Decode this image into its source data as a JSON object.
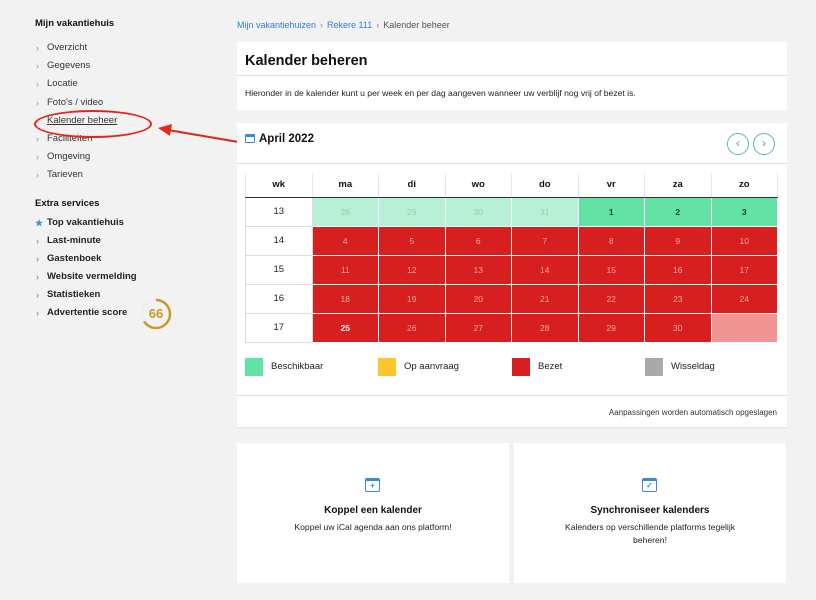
{
  "sidebar": {
    "heading": "Mijn vakantiehuis",
    "items": [
      {
        "label": "Overzicht"
      },
      {
        "label": "Gegevens"
      },
      {
        "label": "Locatie"
      },
      {
        "label": "Foto's / video"
      },
      {
        "label": "Kalender beheer"
      },
      {
        "label": "Faciliteiten"
      },
      {
        "label": "Omgeving"
      },
      {
        "label": "Tarieven"
      }
    ],
    "extra_heading": "Extra services",
    "extra_items": [
      {
        "label": "Top vakantiehuis"
      },
      {
        "label": "Last-minute"
      },
      {
        "label": "Gastenboek"
      },
      {
        "label": "Website vermelding"
      },
      {
        "label": "Statistieken"
      },
      {
        "label": "Advertentie score"
      }
    ],
    "score": "66",
    "score_fraction": 0.66,
    "score_color": "#c89a2a"
  },
  "breadcrumb": {
    "link1": "Mijn vakantiehuizen",
    "link2": "Rekere 111",
    "current": "Kalender beheer",
    "sep": "›"
  },
  "title_panel": {
    "title": "Kalender beheren",
    "description": "Hieronder in de kalender kunt u per week en per dag aangeven wanneer uw verblijf nog vrij of bezet is."
  },
  "calendar": {
    "month_title": "April 2022",
    "prev_icon": "‹",
    "next_icon": "›",
    "headers": [
      "wk",
      "ma",
      "di",
      "wo",
      "do",
      "vr",
      "za",
      "zo"
    ],
    "weeks": [
      {
        "wk": "13",
        "days": [
          {
            "d": "28",
            "s": "past"
          },
          {
            "d": "29",
            "s": "past"
          },
          {
            "d": "30",
            "s": "past"
          },
          {
            "d": "31",
            "s": "past"
          },
          {
            "d": "1",
            "s": "free"
          },
          {
            "d": "2",
            "s": "free"
          },
          {
            "d": "3",
            "s": "free"
          }
        ]
      },
      {
        "wk": "14",
        "days": [
          {
            "d": "4",
            "s": "booked"
          },
          {
            "d": "5",
            "s": "booked"
          },
          {
            "d": "6",
            "s": "booked"
          },
          {
            "d": "7",
            "s": "booked"
          },
          {
            "d": "8",
            "s": "booked"
          },
          {
            "d": "9",
            "s": "booked"
          },
          {
            "d": "10",
            "s": "booked"
          }
        ]
      },
      {
        "wk": "15",
        "days": [
          {
            "d": "11",
            "s": "booked"
          },
          {
            "d": "12",
            "s": "booked"
          },
          {
            "d": "13",
            "s": "booked"
          },
          {
            "d": "14",
            "s": "booked"
          },
          {
            "d": "15",
            "s": "booked"
          },
          {
            "d": "16",
            "s": "booked"
          },
          {
            "d": "17",
            "s": "booked"
          }
        ]
      },
      {
        "wk": "16",
        "days": [
          {
            "d": "18",
            "s": "booked"
          },
          {
            "d": "19",
            "s": "booked"
          },
          {
            "d": "20",
            "s": "booked"
          },
          {
            "d": "21",
            "s": "booked"
          },
          {
            "d": "22",
            "s": "booked"
          },
          {
            "d": "23",
            "s": "booked"
          },
          {
            "d": "24",
            "s": "booked"
          }
        ]
      },
      {
        "wk": "17",
        "days": [
          {
            "d": "25",
            "s": "booked",
            "b": true
          },
          {
            "d": "26",
            "s": "booked"
          },
          {
            "d": "27",
            "s": "booked"
          },
          {
            "d": "28",
            "s": "booked"
          },
          {
            "d": "29",
            "s": "booked"
          },
          {
            "d": "30",
            "s": "booked"
          },
          {
            "d": "",
            "s": "half"
          }
        ]
      }
    ],
    "legend": [
      {
        "label": "Beschikbaar",
        "color": "#62e2a4"
      },
      {
        "label": "Op aanvraag",
        "color": "#fcc72e"
      },
      {
        "label": "Bezet",
        "color": "#d81f1f"
      },
      {
        "label": "Wisseldag",
        "color": "#a9a9a9"
      }
    ],
    "autosave_note": "Aanpassingen worden automatisch opgeslagen"
  },
  "cards": [
    {
      "title": "Koppel een kalender",
      "text": "Koppel uw iCal agenda aan ons platform!",
      "icon": "+"
    },
    {
      "title": "Synchroniseer kalenders",
      "text": "Kalenders op verschillende platforms tegelijk beheren!",
      "icon": "✓"
    }
  ],
  "colors": {
    "accent": "#3a7bd5",
    "annotation": "#e0281e"
  }
}
